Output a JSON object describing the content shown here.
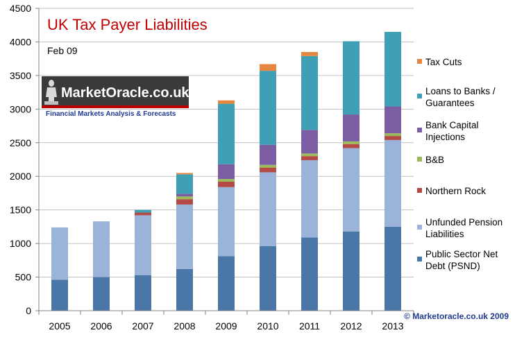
{
  "chart_data": {
    "type": "bar",
    "stacked": true,
    "title": "UK Tax Payer Liabilities",
    "subtitle": "Feb 09",
    "categories": [
      "2005",
      "2006",
      "2007",
      "2008",
      "2009",
      "2010",
      "2011",
      "2012",
      "2013"
    ],
    "ylim": [
      0,
      4500
    ],
    "yticks": [
      0,
      500,
      1000,
      1500,
      2000,
      2500,
      3000,
      3500,
      4000,
      4500
    ],
    "grid": true,
    "legend_position": "right",
    "series": [
      {
        "name": "Public Sector Net Debt (PSND)",
        "color": "#4a76a8",
        "values": [
          460,
          500,
          530,
          620,
          810,
          960,
          1090,
          1180,
          1250
        ]
      },
      {
        "name": "Unfunded Pension Liabilities",
        "color": "#9bb3d9",
        "values": [
          780,
          830,
          890,
          960,
          1030,
          1100,
          1150,
          1240,
          1290
        ]
      },
      {
        "name": "Northern Rock",
        "color": "#b34a45",
        "values": [
          0,
          0,
          40,
          80,
          80,
          70,
          60,
          60,
          60
        ]
      },
      {
        "name": "B&B",
        "color": "#9bbb59",
        "values": [
          0,
          0,
          0,
          40,
          40,
          40,
          40,
          40,
          40
        ]
      },
      {
        "name": "Bank Capital Injections",
        "color": "#7b5da3",
        "values": [
          0,
          0,
          0,
          40,
          220,
          300,
          350,
          400,
          400
        ]
      },
      {
        "name": "Loans to Banks / Guarantees",
        "color": "#3e9fb5",
        "values": [
          0,
          0,
          40,
          290,
          900,
          1100,
          1100,
          1090,
          1110
        ]
      },
      {
        "name": "Tax Cuts",
        "color": "#e7873f",
        "values": [
          0,
          0,
          0,
          20,
          50,
          100,
          60,
          0,
          0
        ]
      }
    ],
    "legend": [
      {
        "series_index": 6,
        "lines": [
          "Tax Cuts"
        ]
      },
      {
        "series_index": 5,
        "lines": [
          "Loans to Banks /",
          "Guarantees"
        ]
      },
      {
        "series_index": 4,
        "lines": [
          "Bank Capital",
          "Injections"
        ]
      },
      {
        "series_index": 3,
        "lines": [
          "B&B"
        ]
      },
      {
        "series_index": 2,
        "lines": [
          "Northern Rock"
        ]
      },
      {
        "series_index": 1,
        "lines": [
          "Unfunded Pension",
          "Liabilities"
        ]
      },
      {
        "series_index": 0,
        "lines": [
          "Public Sector Net",
          "Debt (PSND)"
        ]
      }
    ]
  },
  "logo": {
    "name": "MarketOracle.co.uk",
    "tagline": "Financial Markets Analysis & Forecasts"
  },
  "copyright": "© Marketoracle.co.uk  2009",
  "colors": {
    "title": "#c00000",
    "grid": "#bfbfbf",
    "logo_bg": "#3a3a3a",
    "logo_bar": "#c00000",
    "copyright": "#1f3a93"
  }
}
